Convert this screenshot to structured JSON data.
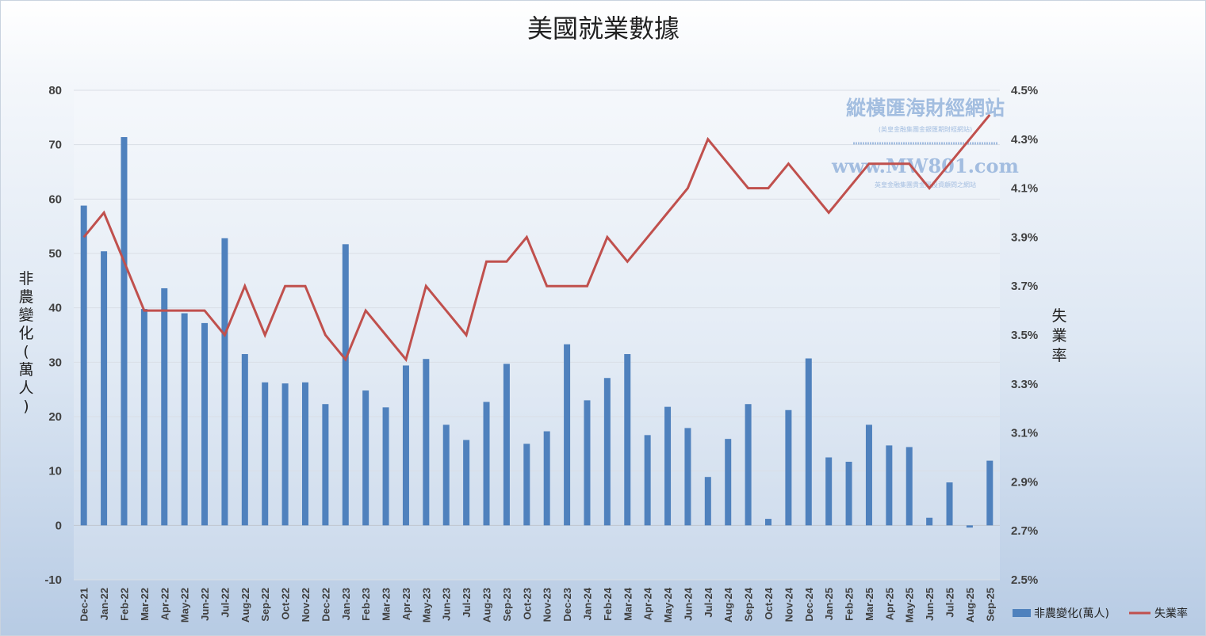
{
  "chart_data": {
    "type": "bar+line",
    "title": "美國就業數據",
    "categories": [
      "Dec-21",
      "Jan-22",
      "Feb-22",
      "Mar-22",
      "Apr-22",
      "May-22",
      "Jun-22",
      "Jul-22",
      "Aug-22",
      "Sep-22",
      "Oct-22",
      "Nov-22",
      "Dec-22",
      "Jan-23",
      "Feb-23",
      "Mar-23",
      "Apr-23",
      "May-23",
      "Jun-23",
      "Jul-23",
      "Aug-23",
      "Sep-23",
      "Oct-23",
      "Nov-23",
      "Dec-23",
      "Jan-24",
      "Feb-24",
      "Mar-24",
      "Apr-24",
      "May-24",
      "Jun-24",
      "Jul-24",
      "Aug-24",
      "Sep-24",
      "Oct-24",
      "Nov-24",
      "Dec-24",
      "Jan-25",
      "Feb-25",
      "Mar-25",
      "Apr-25",
      "May-25",
      "Jun-25",
      "Jul-25",
      "Aug-25",
      "Sep-25"
    ],
    "series": [
      {
        "name": "非農變化(萬人)",
        "type": "bar",
        "axis": "left",
        "color": "#4f81bd",
        "values": [
          58.8,
          50.4,
          71.4,
          39.8,
          43.6,
          39.0,
          37.2,
          52.8,
          31.5,
          26.3,
          26.1,
          26.3,
          22.3,
          51.7,
          24.8,
          21.7,
          29.4,
          30.6,
          18.5,
          15.7,
          22.7,
          29.7,
          15.0,
          17.3,
          33.3,
          23.0,
          27.1,
          31.5,
          16.6,
          21.8,
          17.9,
          8.9,
          15.9,
          22.3,
          1.2,
          21.2,
          30.7,
          12.5,
          11.7,
          18.5,
          14.7,
          14.4,
          1.4,
          7.9,
          -0.4,
          11.9
        ]
      },
      {
        "name": "失業率",
        "type": "line",
        "axis": "right",
        "color": "#c0504d",
        "values": [
          3.9,
          4.0,
          3.8,
          3.6,
          3.6,
          3.6,
          3.6,
          3.5,
          3.7,
          3.5,
          3.7,
          3.7,
          3.5,
          3.4,
          3.6,
          3.5,
          3.4,
          3.7,
          3.6,
          3.5,
          3.8,
          3.8,
          3.9,
          3.7,
          3.7,
          3.7,
          3.9,
          3.8,
          3.9,
          4.0,
          4.1,
          4.3,
          4.2,
          4.1,
          4.1,
          4.2,
          4.1,
          4.0,
          4.1,
          4.2,
          4.2,
          4.2,
          4.1,
          4.2,
          4.3,
          4.4
        ]
      }
    ],
    "y_left": {
      "label": "非農變化(萬人)",
      "ylim": [
        -10,
        80
      ],
      "ticks": [
        "80",
        "70",
        "60",
        "50",
        "40",
        "30",
        "20",
        "10",
        "0",
        "-10"
      ]
    },
    "y_right": {
      "label": "失業率",
      "ylim": [
        2.5,
        4.5
      ],
      "ticks": [
        "4.5%",
        "4.3%",
        "4.1%",
        "3.9%",
        "3.7%",
        "3.5%",
        "3.3%",
        "3.1%",
        "2.9%",
        "2.7%",
        "2.5%"
      ]
    },
    "grid": true,
    "legend_position": "bottom-right"
  },
  "watermark": {
    "title": "縱橫匯海財經網站",
    "subtitle": "(英皇金融集團金銀匯期財經網站)",
    "url": "www.MW801.com",
    "tagline": "英皇金融集團貴金屬投資顧問之網站"
  }
}
